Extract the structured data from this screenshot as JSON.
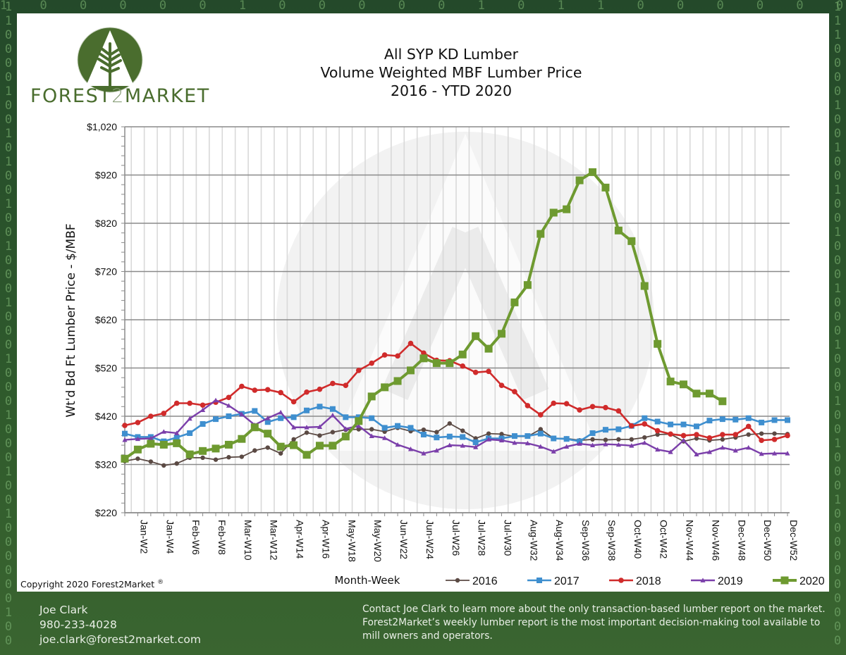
{
  "brand": {
    "name_part1": "FOREST",
    "name_part2": "2",
    "name_part3": "MARKET",
    "logo_icon": "tree-triangle-circle-icon",
    "colors": {
      "brand_green": "#4a6d2e",
      "background_green": "#2f5a2c",
      "binary_digits": "#6fa366"
    }
  },
  "background": {
    "binary_top": "1 0 0 0 0 0 1 0 0 0 0 0 1 0 1 1 0 0 0 0 0 0 1 0 1 0 0 1 1 0 1 1 0 0 1 0 1 0 0 0 1 0 1 1 1 0 0 0 0",
    "binary_left": "1\n1\n0\n0\n0\n0\n1\n0\n0\n1\n0\n1\n0\n0\n1\n0\n0\n1\n0\n0\n0\n1\n0\n0\n0\n1\n0\n0\n0\n1\n0\n0\n0\n1\n0\n0\n1\n0\n0\n0\n0\n0\n0\n1\n0\n0",
    "binary_right": "1\n1\n1\n0\n0\n0\n0\n1\n0\n0\n1\n0\n0\n1\n0\n0\n1\n0\n0\n0\n1\n0\n0\n0\n1\n0\n0\n0\n1\n0\n0\n1\n0\n0\n0\n1\n0\n0\n0\n0\n0\n0\n0\n0\n0\n0"
  },
  "copyright": {
    "text": "Copyright 2020 Forest2Market",
    "mark": "®"
  },
  "footer": {
    "contact_name": "Joe Clark",
    "contact_phone": "980-233-4028",
    "contact_email": "joe.clark@forest2market.com",
    "blurb_lines": [
      "Contact Joe Clark to learn more about the only transaction-based lumber report on the market.",
      "Forest2Market’s weekly lumber report is the most important decision-making tool available to",
      "mill owners and operators."
    ]
  },
  "chart_data": {
    "type": "line",
    "title_lines": [
      "All SYP KD Lumber",
      "Volume Weighted MBF Lumber Price",
      "2016 - YTD 2020"
    ],
    "xlabel": "Month-Week",
    "ylabel": "Wt'd Bd Ft Lumber Price - $/MBF",
    "ylim": [
      220,
      1020
    ],
    "y_ticks": [
      220,
      320,
      420,
      520,
      620,
      720,
      820,
      920,
      1020
    ],
    "y_tick_labels": [
      "$220",
      "$320",
      "$420",
      "$520",
      "$620",
      "$720",
      "$820",
      "$920",
      "$1,020"
    ],
    "x_weeks": 52,
    "x_tick_labels": [
      {
        "week": 2,
        "label": "Jan-W2"
      },
      {
        "week": 4,
        "label": "Jan-W4"
      },
      {
        "week": 6,
        "label": "Feb-W6"
      },
      {
        "week": 8,
        "label": "Feb-W8"
      },
      {
        "week": 10,
        "label": "Mar-W10"
      },
      {
        "week": 12,
        "label": "Mar-W12"
      },
      {
        "week": 14,
        "label": "Apr-W14"
      },
      {
        "week": 16,
        "label": "Apr-W16"
      },
      {
        "week": 18,
        "label": "May-W18"
      },
      {
        "week": 20,
        "label": "May-W20"
      },
      {
        "week": 22,
        "label": "Jun-W22"
      },
      {
        "week": 24,
        "label": "Jun-W24"
      },
      {
        "week": 26,
        "label": "Jul-W26"
      },
      {
        "week": 28,
        "label": "Jul-W28"
      },
      {
        "week": 30,
        "label": "Jul-W30"
      },
      {
        "week": 32,
        "label": "Aug-W32"
      },
      {
        "week": 34,
        "label": "Aug-W34"
      },
      {
        "week": 36,
        "label": "Sep-W36"
      },
      {
        "week": 38,
        "label": "Sep-W38"
      },
      {
        "week": 40,
        "label": "Oct-W40"
      },
      {
        "week": 42,
        "label": "Oct-W42"
      },
      {
        "week": 44,
        "label": "Nov-W44"
      },
      {
        "week": 46,
        "label": "Nov-W46"
      },
      {
        "week": 48,
        "label": "Dec-W48"
      },
      {
        "week": 50,
        "label": "Dec-W50"
      },
      {
        "week": 52,
        "label": "Dec-W52"
      }
    ],
    "grid": true,
    "legend_position": "bottom-right",
    "series": [
      {
        "name": "2016",
        "color": "#5b4a44",
        "marker": "circle",
        "values": [
          327,
          332,
          326,
          318,
          322,
          334,
          334,
          330,
          335,
          336,
          349,
          355,
          343,
          372,
          386,
          380,
          387,
          392,
          393,
          393,
          388,
          396,
          389,
          392,
          387,
          405,
          390,
          374,
          384,
          383,
          378,
          378,
          393,
          374,
          374,
          370,
          372,
          371,
          372,
          372,
          376,
          382,
          383,
          368,
          374,
          370,
          372,
          376,
          382,
          384,
          384,
          383
        ]
      },
      {
        "name": "2017",
        "color": "#3f8fcf",
        "marker": "square",
        "values": [
          384,
          377,
          377,
          368,
          376,
          385,
          404,
          414,
          420,
          425,
          431,
          408,
          416,
          418,
          432,
          440,
          435,
          418,
          418,
          416,
          396,
          400,
          396,
          382,
          376,
          378,
          377,
          366,
          374,
          374,
          379,
          379,
          384,
          374,
          373,
          368,
          385,
          392,
          393,
          400,
          416,
          409,
          403,
          403,
          399,
          411,
          414,
          413,
          416,
          407,
          412,
          412
        ]
      },
      {
        "name": "2018",
        "color": "#d02b2b",
        "marker": "circle",
        "values": [
          401,
          407,
          420,
          426,
          447,
          447,
          443,
          449,
          459,
          482,
          474,
          475,
          469,
          450,
          470,
          476,
          488,
          484,
          515,
          530,
          547,
          545,
          571,
          551,
          536,
          535,
          524,
          511,
          513,
          484,
          471,
          442,
          423,
          447,
          446,
          433,
          440,
          438,
          431,
          400,
          404,
          390,
          383,
          380,
          382,
          375,
          382,
          382,
          399,
          370,
          372,
          380
        ]
      },
      {
        "name": "2019",
        "color": "#7b3faa",
        "marker": "triangle",
        "values": [
          371,
          373,
          374,
          388,
          385,
          415,
          433,
          453,
          442,
          424,
          402,
          416,
          428,
          397,
          397,
          398,
          422,
          394,
          400,
          379,
          375,
          361,
          352,
          343,
          349,
          360,
          359,
          356,
          372,
          370,
          365,
          364,
          357,
          347,
          357,
          363,
          360,
          362,
          361,
          359,
          365,
          351,
          346,
          370,
          341,
          346,
          355,
          349,
          355,
          342,
          343,
          343
        ]
      },
      {
        "name": "2020",
        "color": "#6e9a30",
        "marker": "square",
        "values": [
          332,
          351,
          363,
          361,
          364,
          341,
          348,
          353,
          361,
          373,
          397,
          384,
          357,
          360,
          340,
          359,
          359,
          378,
          410,
          461,
          480,
          493,
          515,
          540,
          530,
          530,
          548,
          586,
          560,
          591,
          656,
          692,
          798,
          842,
          849,
          909,
          926,
          894,
          805,
          783,
          690,
          570,
          492,
          486,
          467,
          467,
          451
        ]
      }
    ]
  }
}
